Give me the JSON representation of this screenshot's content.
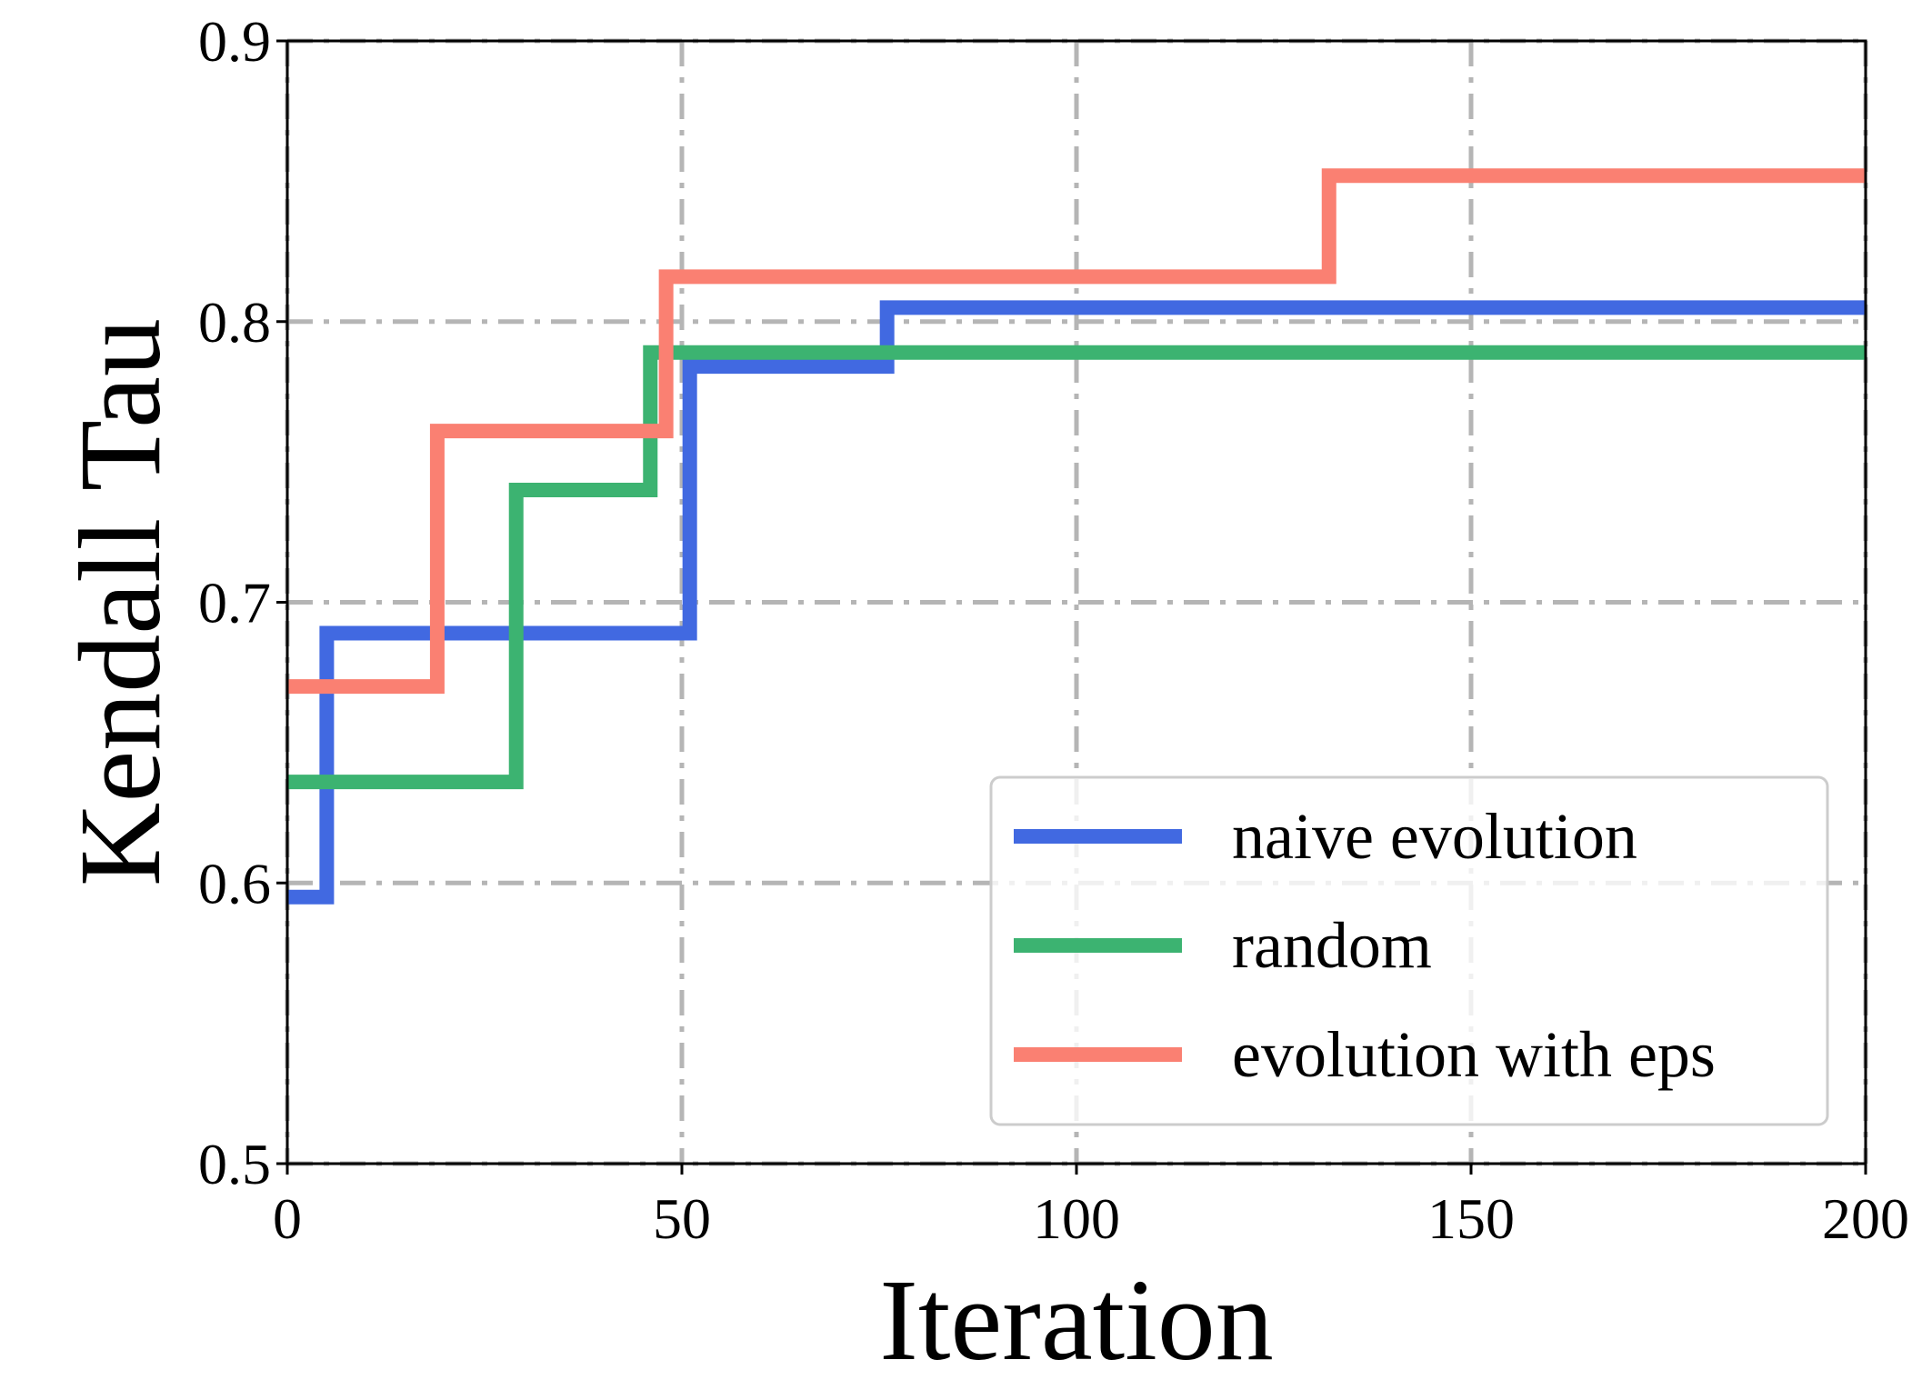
{
  "chart_data": {
    "type": "line",
    "title": "",
    "xlabel": "Iteration",
    "ylabel": "Kendall Tau",
    "xlim": [
      0,
      200
    ],
    "ylim": [
      0.5,
      0.9
    ],
    "xticks": [
      0,
      50,
      100,
      150,
      200
    ],
    "xtick_labels": [
      "0",
      "50",
      "100",
      "150",
      "200"
    ],
    "yticks": [
      0.5,
      0.6,
      0.7,
      0.8,
      0.9
    ],
    "ytick_labels": [
      "0.5",
      "0.6",
      "0.7",
      "0.8",
      "0.9"
    ],
    "grid": true,
    "legend_position": "lower-right",
    "series": [
      {
        "name": "naive evolution",
        "color": "#4169e1",
        "step": "post",
        "x": [
          0,
          5,
          51,
          76,
          200
        ],
        "y": [
          0.595,
          0.689,
          0.784,
          0.805,
          0.805
        ]
      },
      {
        "name": "random",
        "color": "#3cb371",
        "step": "post",
        "x": [
          0,
          29,
          46,
          200
        ],
        "y": [
          0.636,
          0.74,
          0.789,
          0.789
        ]
      },
      {
        "name": "evolution with eps",
        "color": "#fa8072",
        "step": "post",
        "x": [
          0,
          19,
          48,
          132,
          200
        ],
        "y": [
          0.67,
          0.761,
          0.816,
          0.852,
          0.852
        ]
      }
    ]
  }
}
